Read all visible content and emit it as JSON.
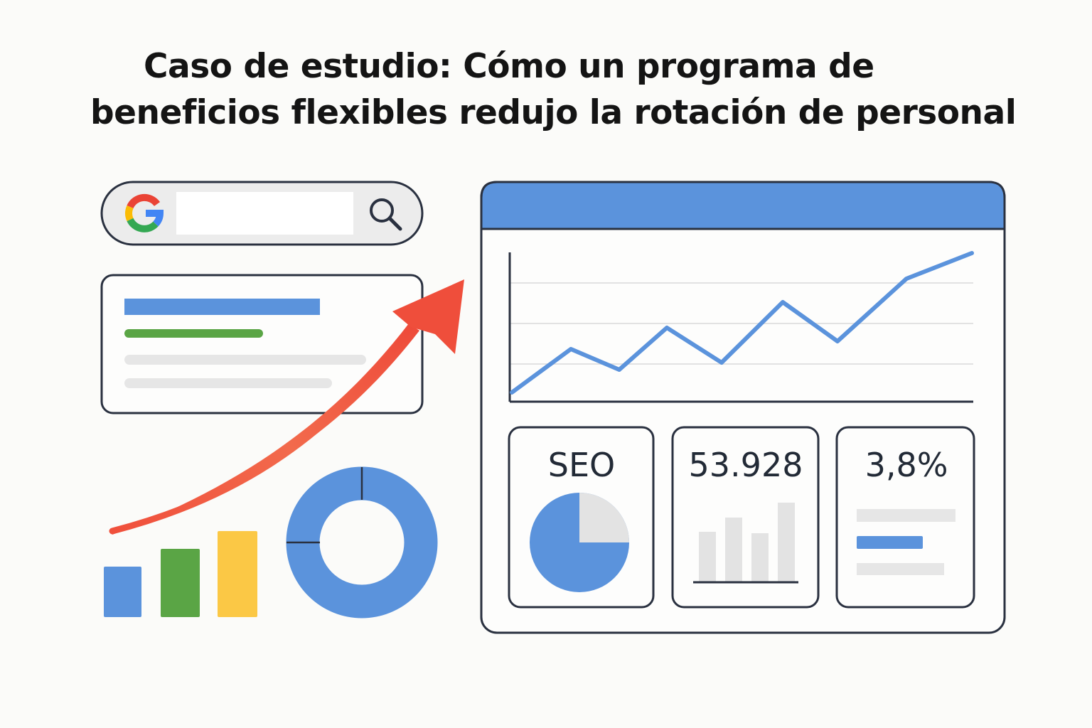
{
  "title": {
    "line1": "Caso de estudio: Cómo un programa de",
    "line2": "beneficios flexibles redujo la rotación de personal"
  },
  "search_bar": {
    "logo": "google-g-icon",
    "icon": "search-icon",
    "value": ""
  },
  "dashboard": {
    "cards": [
      {
        "label": "SEO",
        "visual": "pie-chart-icon"
      },
      {
        "label": "53.928",
        "visual": "bar-chart-icon"
      },
      {
        "label": "3,8%",
        "visual": "lines-icon"
      }
    ]
  },
  "colors": {
    "blue": "#5b93dc",
    "green": "#5aa545",
    "yellow": "#fbc845",
    "red": "#ef5a42",
    "outline": "#2a3140",
    "gray": "#e3e3e3"
  }
}
